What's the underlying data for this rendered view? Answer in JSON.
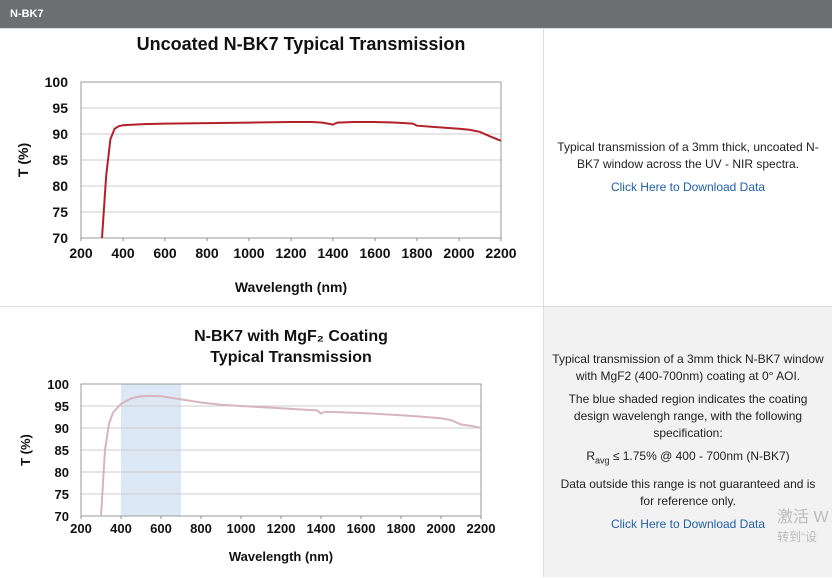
{
  "header": {
    "title": "N-BK7"
  },
  "chart_data": [
    {
      "type": "line",
      "title": [
        "Uncoated N-BK7 Typical Transmission"
      ],
      "x_label": "Wavelength (nm)",
      "y_label": "T (%)",
      "xlim": [
        200,
        2200
      ],
      "xticks": [
        200,
        400,
        600,
        800,
        1000,
        1200,
        1400,
        1600,
        1800,
        2000,
        2200
      ],
      "ylim": [
        70,
        100
      ],
      "yticks": [
        70,
        75,
        80,
        85,
        90,
        95,
        100
      ],
      "grid": true,
      "series": [
        {
          "color": "#b3202a",
          "x": [
            300,
            320,
            340,
            360,
            380,
            400,
            500,
            600,
            800,
            1000,
            1200,
            1300,
            1350,
            1400,
            1420,
            1500,
            1600,
            1700,
            1780,
            1800,
            1900,
            2000,
            2050,
            2100,
            2150,
            2200
          ],
          "values": [
            70,
            82,
            89,
            91,
            91.5,
            91.7,
            91.9,
            92,
            92.1,
            92.2,
            92.3,
            92.3,
            92.2,
            91.8,
            92.2,
            92.3,
            92.3,
            92.2,
            92,
            91.6,
            91.3,
            91,
            90.8,
            90.4,
            89.5,
            88.7
          ]
        }
      ]
    },
    {
      "type": "line",
      "title": [
        "N-BK7 with MgF₂ Coating",
        "Typical Transmission"
      ],
      "x_label": "Wavelength (nm)",
      "y_label": "T (%)",
      "xlim": [
        200,
        2200
      ],
      "xticks": [
        200,
        400,
        600,
        800,
        1000,
        1200,
        1400,
        1600,
        1800,
        2000,
        2200
      ],
      "ylim": [
        70,
        100
      ],
      "yticks": [
        70,
        75,
        80,
        85,
        90,
        95,
        100
      ],
      "grid": true,
      "shaded_region": [
        400,
        700
      ],
      "shade_color": "#dce9f5",
      "series": [
        {
          "color": "#d8b4c0",
          "x": [
            300,
            320,
            340,
            360,
            400,
            450,
            500,
            550,
            600,
            700,
            800,
            900,
            1000,
            1200,
            1300,
            1380,
            1400,
            1420,
            1500,
            1600,
            1800,
            1900,
            2000,
            2050,
            2100,
            2150,
            2200
          ],
          "values": [
            70,
            85,
            91,
            93.5,
            95.5,
            96.7,
            97.2,
            97.3,
            97.2,
            96.5,
            95.8,
            95.3,
            95,
            94.5,
            94.2,
            94,
            93.3,
            93.7,
            93.6,
            93.4,
            92.9,
            92.6,
            92.2,
            91.8,
            90.8,
            90.5,
            90
          ]
        }
      ]
    }
  ],
  "panels": [
    {
      "paragraphs": [
        "Typical transmission of a 3mm thick, uncoated N-BK7 window across the UV - NIR spectra."
      ],
      "link": "Click Here to Download Data"
    },
    {
      "paragraphs": [
        "Typical transmission of a 3mm thick N-BK7 window with MgF2 (400-700nm) coating at 0° AOI.",
        "The blue shaded region indicates the coating design wavelengh range, with the following specification:"
      ],
      "spec": {
        "symbol": "R",
        "subscript": "avg",
        "text": " ≤ 1.75% @ 400 - 700nm (N-BK7)"
      },
      "note": "Data outside this range is not guaranteed and is for reference only.",
      "link": "Click Here to Download Data"
    }
  ],
  "watermark": [
    "激活 W",
    "转到“设"
  ]
}
